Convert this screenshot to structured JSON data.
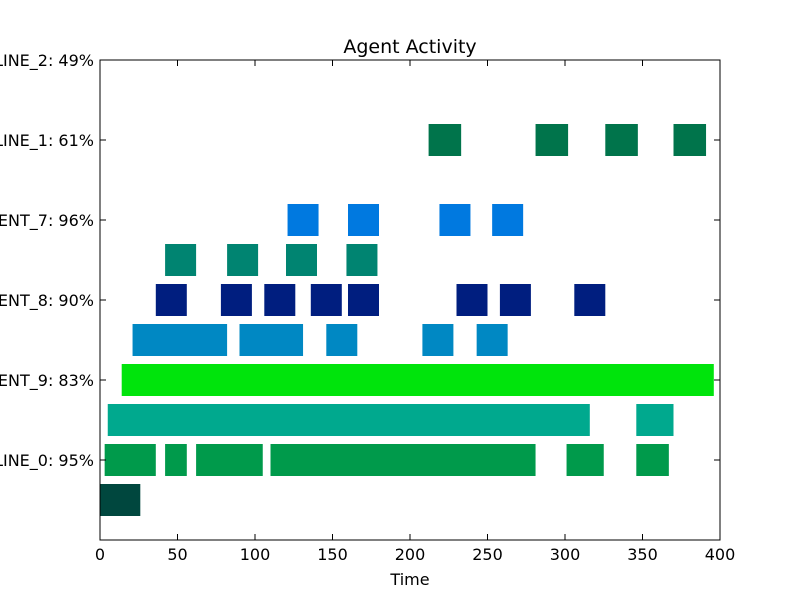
{
  "chart_data": {
    "type": "gantt",
    "title": "Agent Activity",
    "xlabel": "Time",
    "xlim": [
      0,
      400
    ],
    "xticks": [
      0,
      50,
      100,
      150,
      200,
      250,
      300,
      350,
      400
    ],
    "ylim": [
      -1,
      5
    ],
    "yticks": [
      {
        "value": 0,
        "label": "LINE_0: 95%"
      },
      {
        "value": 1,
        "label": "ENT_9: 83%"
      },
      {
        "value": 2,
        "label": "ENT_8: 90%"
      },
      {
        "value": 3,
        "label": "ENT_7: 96%"
      },
      {
        "value": 4,
        "label": "LINE_1: 61%"
      },
      {
        "value": 5,
        "label": "LINE_2: 49%"
      }
    ],
    "bar_height": 0.4,
    "rows": [
      {
        "y": -0.5,
        "color": "#00473e",
        "segments": [
          [
            0,
            26
          ]
        ]
      },
      {
        "y": 0,
        "color": "#009a4b",
        "segments": [
          [
            3,
            36
          ],
          [
            42,
            56
          ],
          [
            62,
            105
          ],
          [
            110,
            281
          ],
          [
            301,
            325
          ],
          [
            346,
            367
          ]
        ]
      },
      {
        "y": 0.5,
        "color": "#00a98e",
        "segments": [
          [
            5,
            316
          ],
          [
            346,
            370
          ]
        ]
      },
      {
        "y": 1,
        "color": "#00e40c",
        "segments": [
          [
            14,
            396
          ]
        ]
      },
      {
        "y": 1.5,
        "color": "#0088c3",
        "segments": [
          [
            21,
            82
          ],
          [
            90,
            131
          ],
          [
            146,
            166
          ],
          [
            208,
            228
          ],
          [
            243,
            263
          ]
        ]
      },
      {
        "y": 2,
        "color": "#001e7f",
        "segments": [
          [
            36,
            56
          ],
          [
            78,
            98
          ],
          [
            106,
            126
          ],
          [
            136,
            156
          ],
          [
            160,
            180
          ],
          [
            230,
            250
          ],
          [
            258,
            278
          ],
          [
            306,
            326
          ]
        ]
      },
      {
        "y": 2.5,
        "color": "#008471",
        "segments": [
          [
            42,
            62
          ],
          [
            82,
            102
          ],
          [
            120,
            140
          ],
          [
            159,
            179
          ]
        ]
      },
      {
        "y": 3,
        "color": "#0079e0",
        "segments": [
          [
            121,
            141
          ],
          [
            160,
            180
          ],
          [
            219,
            239
          ],
          [
            253,
            273
          ]
        ]
      },
      {
        "y": 4,
        "color": "#00744b",
        "segments": [
          [
            212,
            233
          ],
          [
            281,
            302
          ],
          [
            326,
            347
          ],
          [
            370,
            391
          ]
        ]
      }
    ]
  }
}
